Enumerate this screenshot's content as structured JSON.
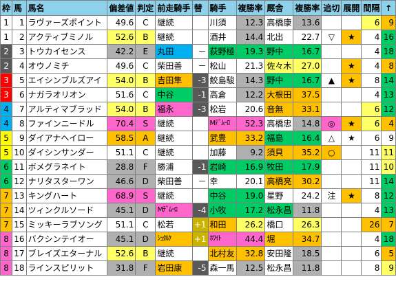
{
  "colors": {
    "header": "#8ed1ea",
    "yellow": "#ffff66",
    "orange": "#ffc000",
    "pink": "#ff66cc",
    "green": "#00cc66",
    "light_blue": "#00b0f0",
    "gray": "#b0b0b0",
    "drop_gray": "#595959",
    "plus_olive": "#c9b500"
  },
  "headers": [
    "枠",
    "馬",
    "馬名",
    "偏差値",
    "判定",
    "前走騎手",
    "替",
    "騎手",
    "複勝率",
    "厩舎",
    "複勝率",
    "追切",
    "展開",
    "間隔",
    "↑"
  ],
  "rows": [
    {
      "waku": "1",
      "wakuc": "#ffffff",
      "wakut": "#000000",
      "uma": "1",
      "name": "ラヴァーズポイント",
      "hensa": "49.6",
      "hantei": "C",
      "hcol": "",
      "prev": "継続",
      "pcol": "",
      "kawari": "",
      "kcol": "",
      "jockey": "川須",
      "jcol": "",
      "jrate": "12.3",
      "jrcol": "#b0b0b0",
      "trainer": "高橋康",
      "tcol": "",
      "trate": "13.6",
      "trcol": "#b0b0b0",
      "oikiri": "",
      "ocol": "",
      "tenkai": "",
      "tecol": "",
      "kankaku": "6",
      "kncol": "#ffff66",
      "up": "9",
      "upcol": "#ffc000"
    },
    {
      "waku": "1",
      "wakuc": "#ffffff",
      "wakut": "#000000",
      "uma": "2",
      "name": "アクティブミノル",
      "hensa": "52.6",
      "hantei": "B",
      "hcol": "#ffff66",
      "prev": "継続",
      "pcol": "",
      "kawari": "",
      "kcol": "",
      "jockey": "酒井",
      "jcol": "",
      "jrate": "14.4",
      "jrcol": "#b0b0b0",
      "trainer": "北出",
      "tcol": "",
      "trate": "22.7",
      "trcol": "",
      "oikiri": "▽",
      "ocol": "",
      "tenkai": "★",
      "tecol": "#ffc000",
      "kankaku": "4",
      "kncol": "",
      "up": "16",
      "upcol": "#00cc66"
    },
    {
      "waku": "2",
      "wakuc": "#595959",
      "wakut": "#ffffff",
      "uma": "3",
      "name": "トウカイセンス",
      "hensa": "42.2",
      "hantei": "E",
      "hcol": "#b0b0b0",
      "prev": "丸田",
      "pcol": "#00b0f0",
      "kawari": "－",
      "kcol": "",
      "jockey": "荻野極",
      "jcol": "#00cc66",
      "jrate": "19.3",
      "jrcol": "#00cc66",
      "trainer": "野中",
      "tcol": "#00cc66",
      "trate": "16.7",
      "trcol": "#00cc66",
      "oikiri": "",
      "ocol": "",
      "tenkai": "",
      "tecol": "",
      "kankaku": "4",
      "kncol": "",
      "up": "18",
      "upcol": "#00cc66"
    },
    {
      "waku": "2",
      "wakuc": "#595959",
      "wakut": "#ffffff",
      "uma": "4",
      "name": "オウノミチ",
      "hensa": "49.6",
      "hantei": "C",
      "hcol": "",
      "prev": "柴田善",
      "pcol": "",
      "kawari": "－",
      "kcol": "",
      "jockey": "松山",
      "jcol": "",
      "jrate": "21.3",
      "jrcol": "",
      "trainer": "佐々木",
      "tcol": "#ffff66",
      "trate": "27.0",
      "trcol": "#ffff66",
      "oikiri": "",
      "ocol": "",
      "tenkai": "★",
      "tecol": "#ffc000",
      "kankaku": "4",
      "kncol": "",
      "up": "8",
      "upcol": "#ffc000"
    },
    {
      "waku": "3",
      "wakuc": "#ff0000",
      "wakut": "#ffffff",
      "uma": "5",
      "name": "エイシンブルズアイ",
      "hensa": "54.0",
      "hantei": "B",
      "hcol": "#ffff66",
      "prev": "吉田隼",
      "pcol": "#ffc000",
      "kawari": "-3",
      "kcol": "#595959",
      "jockey": "鮫島駿",
      "jcol": "",
      "jrate": "14.3",
      "jrcol": "#b0b0b0",
      "trainer": "野中",
      "tcol": "#00cc66",
      "trate": "16.7",
      "trcol": "#00cc66",
      "oikiri": "▲",
      "ocol": "",
      "tenkai": "★",
      "tecol": "#ffc000",
      "kankaku": "8",
      "kncol": "",
      "up": "14",
      "upcol": "#00cc66"
    },
    {
      "waku": "3",
      "wakuc": "#ff0000",
      "wakut": "#ffffff",
      "uma": "6",
      "name": "ナガラオリオン",
      "hensa": "51.6",
      "hantei": "C",
      "hcol": "",
      "prev": "中谷",
      "pcol": "#00cc66",
      "kawari": "-1",
      "kcol": "#595959",
      "jockey": "高倉",
      "jcol": "",
      "jrate": "12.2",
      "jrcol": "#b0b0b0",
      "trainer": "大根田",
      "tcol": "#ffc000",
      "trate": "37.5",
      "trcol": "#ffc000",
      "oikiri": "",
      "ocol": "",
      "tenkai": "",
      "tecol": "",
      "kankaku": "4",
      "kncol": "",
      "up": "13",
      "upcol": "#00cc66"
    },
    {
      "waku": "4",
      "wakuc": "#00b0f0",
      "wakut": "#000000",
      "uma": "7",
      "name": "アルティマブラッド",
      "hensa": "54.0",
      "hantei": "B",
      "hcol": "#ffff66",
      "prev": "福永",
      "pcol": "#ff66cc",
      "kawari": "-3",
      "kcol": "#595959",
      "jockey": "松岩",
      "jcol": "",
      "jrate": "20.6",
      "jrcol": "",
      "trainer": "音無",
      "tcol": "#ffc000",
      "trate": "33.1",
      "trcol": "#ffc000",
      "oikiri": "",
      "ocol": "",
      "tenkai": "",
      "tecol": "",
      "kankaku": "6",
      "kncol": "#ffff66",
      "up": "12",
      "upcol": "#00cc66"
    },
    {
      "waku": "4",
      "wakuc": "#00b0f0",
      "wakut": "#000000",
      "uma": "8",
      "name": "ファインニードル",
      "hensa": "70.4",
      "hantei": "S",
      "hcol": "#ff66cc",
      "prev": "継続",
      "pcol": "",
      "kawari": "",
      "kcol": "",
      "jockey": "Mﾃﾞﾑｰﾛ",
      "jcol": "#ff66cc",
      "jrate": "52.3",
      "jrcol": "#ff66cc",
      "trainer": "高橋忠",
      "tcol": "",
      "trate": "14.8",
      "trcol": "#b0b0b0",
      "oikiri": "◎",
      "ocol": "#ff66cc",
      "tenkai": "★",
      "tecol": "#ffc000",
      "kankaku": "6",
      "kncol": "#ffff66",
      "up": "4",
      "upcol": "#ffc000"
    },
    {
      "waku": "5",
      "wakuc": "#ffff00",
      "wakut": "#000000",
      "uma": "9",
      "name": "ダイアナヘイロー",
      "hensa": "58.5",
      "hantei": "A",
      "hcol": "#ffc000",
      "prev": "継続",
      "pcol": "",
      "kawari": "",
      "kcol": "",
      "jockey": "武豊",
      "jcol": "#ffc000",
      "jrate": "33.2",
      "jrcol": "#ffc000",
      "trainer": "福島",
      "tcol": "#00cc66",
      "trate": "16.4",
      "trcol": "#00cc66",
      "oikiri": "△",
      "ocol": "",
      "tenkai": "★",
      "tecol": "",
      "kankaku": "6",
      "kncol": "",
      "up": "9",
      "upcol": ""
    },
    {
      "waku": "5",
      "wakuc": "#ffff00",
      "wakut": "#000000",
      "uma": "10",
      "name": "ダイシンサンダー",
      "hensa": "51.1",
      "hantei": "C",
      "hcol": "",
      "prev": "継続",
      "pcol": "",
      "kawari": "",
      "kcol": "",
      "jockey": "加藤",
      "jcol": "",
      "jrate": "9.2",
      "jrcol": "#b0b0b0",
      "trainer": "須貝",
      "tcol": "#ffc000",
      "trate": "35.2",
      "trcol": "#ffc000",
      "oikiri": "○",
      "ocol": "#ffc000",
      "tenkai": "",
      "tecol": "",
      "kankaku": "11",
      "kncol": "",
      "up": "11",
      "upcol": "#ffff66"
    },
    {
      "waku": "6",
      "wakuc": "#00cc66",
      "wakut": "#000000",
      "uma": "11",
      "name": "ボメグラネイト",
      "hensa": "28.8",
      "hantei": "F",
      "hcol": "#b0b0b0",
      "prev": "勝浦",
      "pcol": "",
      "kawari": "-1",
      "kcol": "#595959",
      "jockey": "岩崎",
      "jcol": "#00cc66",
      "jrate": "16.9",
      "jrcol": "#00cc66",
      "trainer": "牧田",
      "tcol": "#00cc66",
      "trate": "17.9",
      "trcol": "#00cc66",
      "oikiri": "",
      "ocol": "",
      "tenkai": "",
      "tecol": "",
      "kankaku": "11",
      "kncol": "",
      "up": "10",
      "upcol": "#ffff66"
    },
    {
      "waku": "6",
      "wakuc": "#00cc66",
      "wakut": "#000000",
      "uma": "12",
      "name": "ナリタスターワン",
      "hensa": "46.6",
      "hantei": "D",
      "hcol": "#b0b0b0",
      "prev": "柴田善",
      "pcol": "",
      "kawari": "－",
      "kcol": "",
      "jockey": "幸",
      "jcol": "",
      "jrate": "20.1",
      "jrcol": "",
      "trainer": "高橋亮",
      "tcol": "#ffc000",
      "trate": "30.2",
      "trcol": "#ffc000",
      "oikiri": "",
      "ocol": "",
      "tenkai": "",
      "tecol": "",
      "kankaku": "11",
      "kncol": "",
      "up": "14",
      "upcol": "#00cc66"
    },
    {
      "waku": "7",
      "wakuc": "#ffc000",
      "wakut": "#000000",
      "uma": "13",
      "name": "キングハート",
      "hensa": "68.9",
      "hantei": "S",
      "hcol": "#ff66cc",
      "prev": "継続",
      "pcol": "",
      "kawari": "",
      "kcol": "",
      "jockey": "中谷",
      "jcol": "#00cc66",
      "jrate": "19.0",
      "jrcol": "#00cc66",
      "trainer": "星野",
      "tcol": "",
      "trate": "24.2",
      "trcol": "",
      "oikiri": "注",
      "ocol": "",
      "tenkai": "★",
      "tecol": "#ffc000",
      "kankaku": "8",
      "kncol": "",
      "up": "12",
      "upcol": "#00cc66"
    },
    {
      "waku": "7",
      "wakuc": "#ffc000",
      "wakut": "#000000",
      "uma": "14",
      "name": "ツィンクルソード",
      "hensa": "45.1",
      "hantei": "D",
      "hcol": "#b0b0b0",
      "prev": "Mﾃﾞﾑｰﾛ",
      "pcol": "#ff66cc",
      "kawari": "-4",
      "kcol": "#595959",
      "jockey": "小牧",
      "jcol": "#00cc66",
      "jrate": "17.2",
      "jrcol": "#00cc66",
      "trainer": "松永昌",
      "tcol": "#00cc66",
      "trate": "11.8",
      "trcol": "#b0b0b0",
      "oikiri": "",
      "ocol": "",
      "tenkai": "",
      "tecol": "",
      "kankaku": "4",
      "kncol": "",
      "up": "13",
      "upcol": "#00cc66"
    },
    {
      "waku": "7",
      "wakuc": "#ffc000",
      "wakut": "#000000",
      "uma": "15",
      "name": "ミッキーラブソング",
      "hensa": "51.1",
      "hantei": "C",
      "hcol": "",
      "prev": "松若",
      "pcol": "",
      "kawari": "+1",
      "kcol": "#c9b500",
      "jockey": "和田",
      "jcol": "#ffc000",
      "jrate": "26.2",
      "jrcol": "#ffff66",
      "trainer": "橋口",
      "tcol": "",
      "trate": "26.3",
      "trcol": "#ffff66",
      "oikiri": "",
      "ocol": "",
      "tenkai": "",
      "tecol": "",
      "kankaku": "26",
      "kncol": "#ffc000",
      "up": "7",
      "upcol": "#ffc000"
    },
    {
      "waku": "8",
      "wakuc": "#ff66cc",
      "wakut": "#000000",
      "uma": "16",
      "name": "バクシンテイオー",
      "hensa": "45.1",
      "hantei": "D",
      "hcol": "#b0b0b0",
      "prev": "ｼｭﾀﾙｹ",
      "pcol": "#ffc000",
      "kawari": "+1",
      "kcol": "#c9b500",
      "jockey": "ﾎﾜｲﾄ",
      "jcol": "#ff66cc",
      "jrate": "44.4",
      "jrcol": "#ff66cc",
      "trainer": "堀",
      "tcol": "#ffc000",
      "trate": "34.7",
      "trcol": "#ffc000",
      "oikiri": "",
      "ocol": "",
      "tenkai": "",
      "tecol": "",
      "kankaku": "4",
      "kncol": "",
      "up": "18",
      "upcol": "#00cc66"
    },
    {
      "waku": "8",
      "wakuc": "#ff66cc",
      "wakut": "#000000",
      "uma": "17",
      "name": "ブレイズエターナル",
      "hensa": "52.6",
      "hantei": "B",
      "hcol": "#ffff66",
      "prev": "継続",
      "pcol": "",
      "kawari": "",
      "kcol": "",
      "jockey": "北村友",
      "jcol": "#ffc000",
      "jrate": "32.8",
      "jrcol": "#ffc000",
      "trainer": "安田隆",
      "tcol": "",
      "trate": "18.5",
      "trcol": "#b0b0b0",
      "oikiri": "",
      "ocol": "",
      "tenkai": "",
      "tecol": "",
      "kankaku": "6",
      "kncol": "",
      "up": "5",
      "upcol": "#ffc000"
    },
    {
      "waku": "8",
      "wakuc": "#ff66cc",
      "wakut": "#000000",
      "uma": "18",
      "name": "ラインスピリット",
      "hensa": "31.8",
      "hantei": "F",
      "hcol": "#b0b0b0",
      "prev": "岩田康",
      "pcol": "#ffc000",
      "kawari": "-5",
      "kcol": "#595959",
      "jockey": "森一馬",
      "jcol": "",
      "jrate": "12.5",
      "jrcol": "#b0b0b0",
      "trainer": "松永昌",
      "tcol": "",
      "trate": "11.8",
      "trcol": "#b0b0b0",
      "oikiri": "",
      "ocol": "",
      "tenkai": "",
      "tecol": "",
      "kankaku": "8",
      "kncol": "",
      "up": "9",
      "upcol": "#ffff66"
    }
  ]
}
